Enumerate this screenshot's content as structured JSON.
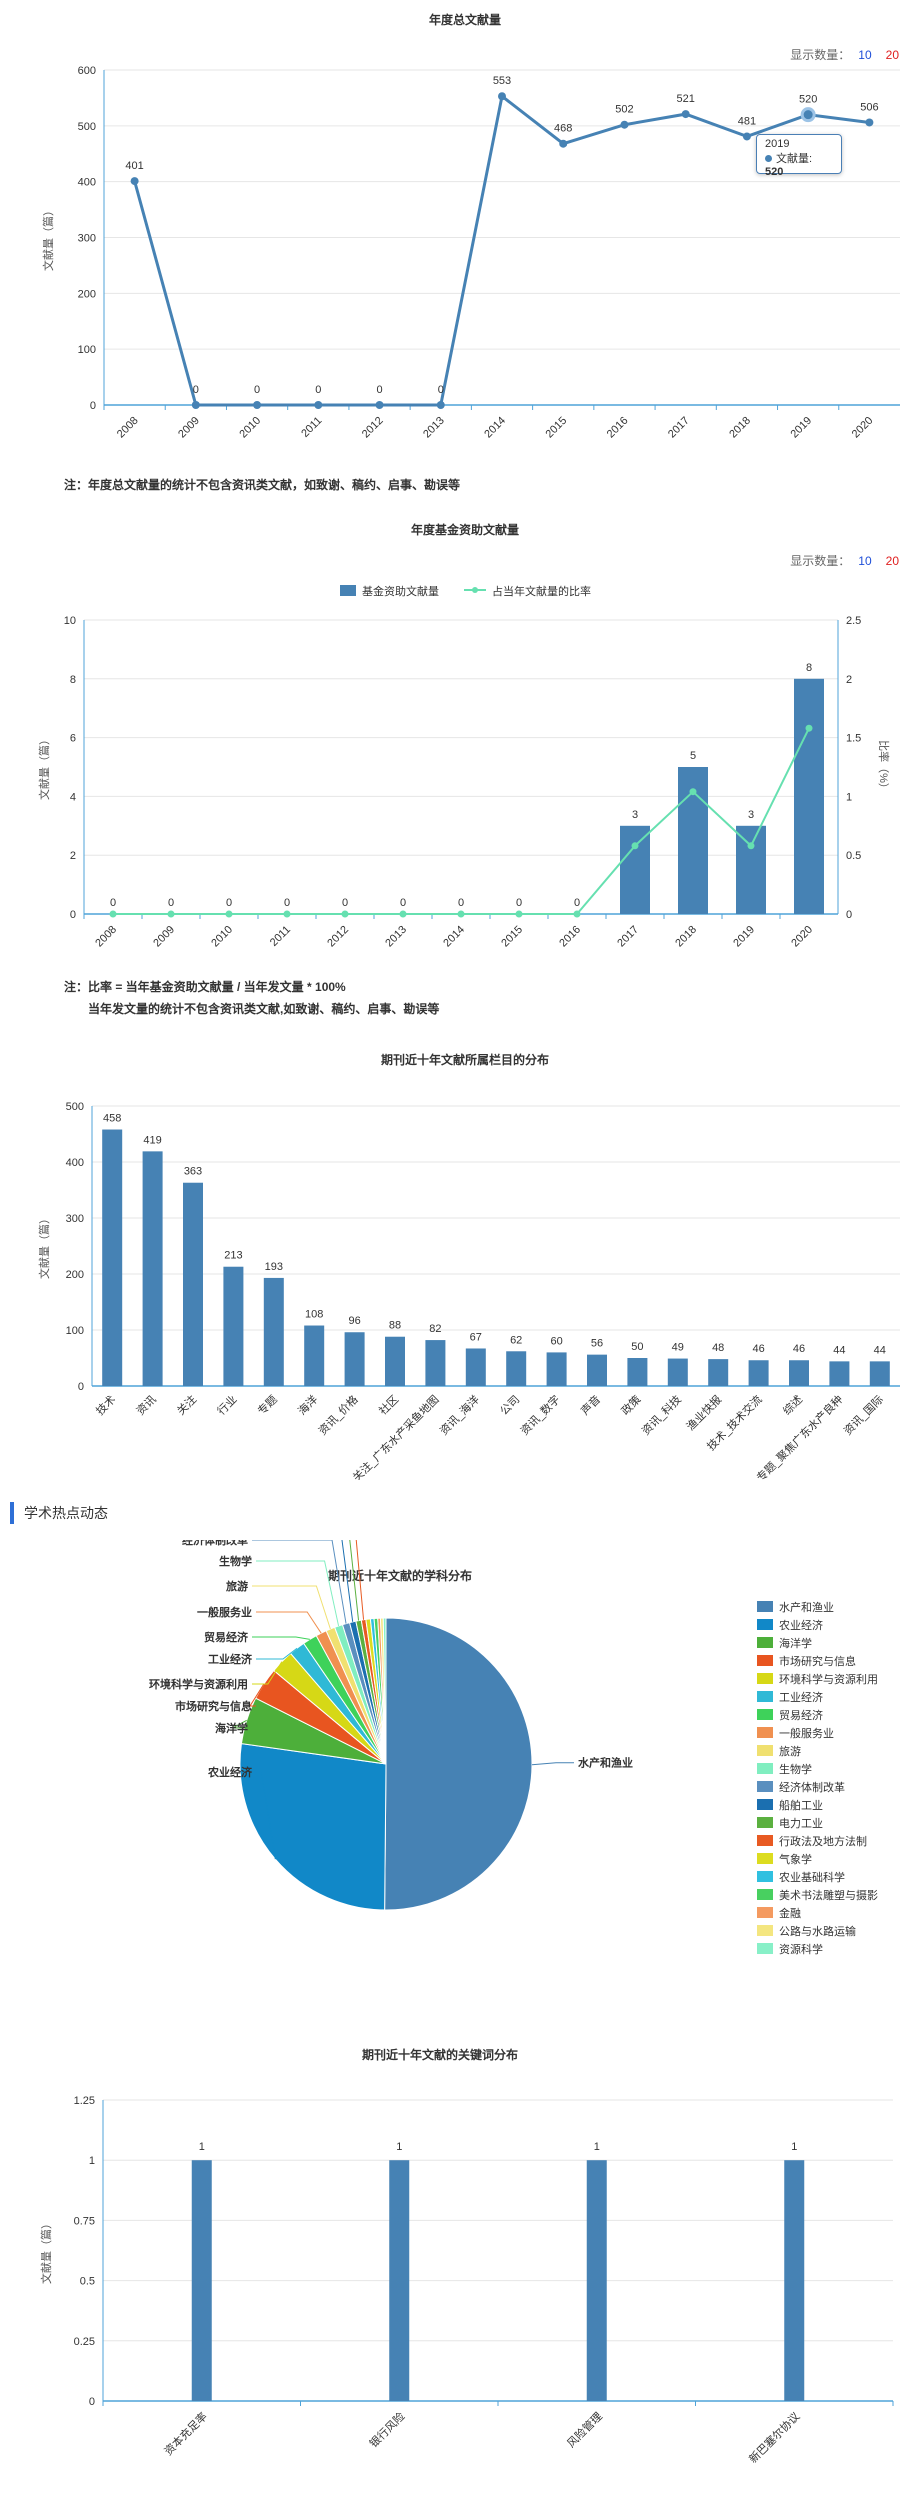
{
  "controls": {
    "label": "显示数量：",
    "opt_a": "10",
    "opt_b": "20"
  },
  "section_title": "学术热点动态",
  "notes": {
    "chart1": "注：年度总文献量的统计不包含资讯类文献，如致谢、稿约、启事、勘误等",
    "chart2_a": "注：比率 = 当年基金资助文献量 / 当年发文量 * 100%",
    "chart2_b": "当年发文量的统计不包含资讯类文献,如致谢、稿约、启事、勘误等"
  },
  "tooltip": {
    "year": "2019",
    "label": "文献量:",
    "value": "520"
  },
  "colors": {
    "primary": "#4682b4",
    "secondary": "#66e0b0",
    "axis": "#4fa3d9"
  },
  "chart_data": [
    {
      "type": "line",
      "title": "年度总文献量",
      "ylabel": "文献量（篇）",
      "x": [
        "2008",
        "2009",
        "2010",
        "2011",
        "2012",
        "2013",
        "2014",
        "2015",
        "2016",
        "2017",
        "2018",
        "2019",
        "2020"
      ],
      "series": [
        {
          "values": [
            401,
            0,
            0,
            0,
            0,
            0,
            553,
            468,
            502,
            521,
            481,
            520,
            506
          ]
        }
      ],
      "ylim": [
        0,
        600
      ],
      "yticks": [
        0,
        100,
        200,
        300,
        400,
        500,
        600
      ],
      "grid": true
    },
    {
      "type": "bar",
      "title": "年度基金资助文献量",
      "ylabel": "文献量（篇）",
      "ylabel_right": "比率（%）",
      "x": [
        "2008",
        "2009",
        "2010",
        "2011",
        "2012",
        "2013",
        "2014",
        "2015",
        "2016",
        "2017",
        "2018",
        "2019",
        "2020"
      ],
      "series": [
        {
          "name": "基金资助文献量",
          "values": [
            0,
            0,
            0,
            0,
            0,
            0,
            0,
            0,
            0,
            3,
            5,
            3,
            8
          ]
        },
        {
          "name": "占当年文献量的比率",
          "type": "line",
          "values": [
            0,
            0,
            0,
            0,
            0,
            0,
            0,
            0,
            0,
            0.58,
            1.04,
            0.58,
            1.58
          ]
        }
      ],
      "ylim": [
        0,
        10
      ],
      "yticks": [
        0,
        2,
        4,
        6,
        8,
        10
      ],
      "y2lim": [
        0,
        2.5
      ],
      "y2ticks": [
        "0",
        "0.5",
        "1",
        "1.5",
        "2",
        "2.5"
      ],
      "legend": "top-center"
    },
    {
      "type": "bar",
      "title": "期刊近十年文献所属栏目的分布",
      "ylabel": "文献量（篇）",
      "categories": [
        "技术",
        "资讯",
        "关注",
        "行业",
        "专题",
        "海洋",
        "资讯_价格",
        "社区",
        "关注_广东水产采鱼地图",
        "资讯_海洋",
        "公司",
        "资讯_数字",
        "声音",
        "政策",
        "资讯_科技",
        "渔业快报",
        "技术_技术交流",
        "综述",
        "专题_聚焦广东水产良种",
        "资讯_国际"
      ],
      "values": [
        458,
        419,
        363,
        213,
        193,
        108,
        96,
        88,
        82,
        67,
        62,
        60,
        56,
        50,
        49,
        48,
        46,
        46,
        44,
        44
      ],
      "ylim": [
        0,
        500
      ],
      "yticks": [
        0,
        100,
        200,
        300,
        400,
        500
      ]
    },
    {
      "type": "pie",
      "title": "期刊近十年文献的学科分布",
      "labels": [
        "水产和渔业",
        "农业经济",
        "海洋学",
        "市场研究与信息",
        "环境科学与资源利用",
        "工业经济",
        "贸易经济",
        "一般服务业",
        "旅游",
        "生物学",
        "经济体制改革",
        "船舶工业",
        "电力工业",
        "行政法及地方法制",
        "气象学",
        "农业基础科学",
        "美术书法雕塑与摄影",
        "金融",
        "公路与水路运输",
        "资源科学"
      ],
      "values": [
        50.0,
        27.0,
        5.2,
        3.6,
        2.6,
        1.8,
        1.6,
        1.2,
        1.0,
        0.9,
        0.8,
        0.7,
        0.6,
        0.5,
        0.5,
        0.4,
        0.4,
        0.3,
        0.3,
        0.3
      ],
      "colors": [
        "#4682b4",
        "#1188c8",
        "#4daf3a",
        "#e85520",
        "#d6d816",
        "#2fb9d6",
        "#3ed25a",
        "#f09050",
        "#f0e070",
        "#80eec0",
        "#5a8fbf",
        "#1b6fb0",
        "#5bb040",
        "#e85a22",
        "#dcdc20",
        "#30c0e0",
        "#48d060",
        "#f49a60",
        "#f4e680",
        "#88f0c8"
      ],
      "legend": "right"
    },
    {
      "type": "bar",
      "title": "期刊近十年文献的关键词分布",
      "ylabel": "文献量（篇）",
      "categories": [
        "资本充足率",
        "银行风险",
        "风险管理",
        "新巴塞尔协议"
      ],
      "values": [
        1,
        1,
        1,
        1
      ],
      "ylim": [
        0,
        1.25
      ],
      "yticks": [
        "0",
        "0.25",
        "0.5",
        "0.75",
        "1",
        "1.25"
      ]
    }
  ]
}
